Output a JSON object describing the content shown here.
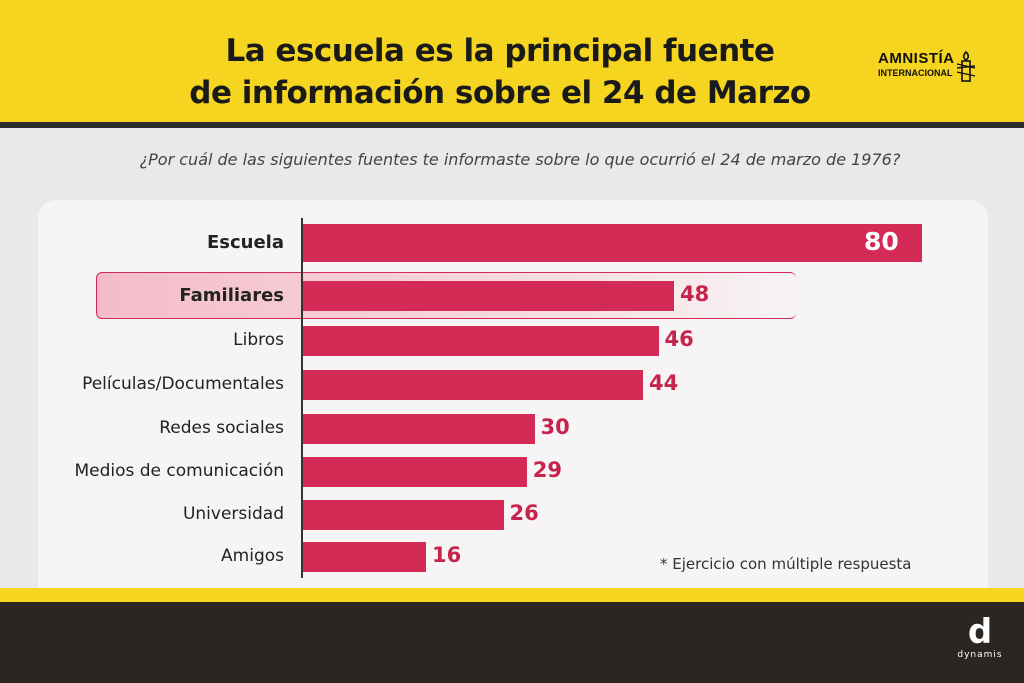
{
  "header": {
    "title_line1": "La escuela es la principal fuente",
    "title_line2": "de información sobre el 24 de Marzo",
    "logo_line1": "AMNISTÍA",
    "logo_line2": "INTERNACIONAL"
  },
  "chart_data": {
    "type": "bar",
    "orientation": "horizontal",
    "title": "¿Por cuál de las siguientes fuentes te informaste sobre lo que ocurrió el 24 de marzo de 1976?",
    "categories": [
      "Escuela",
      "Familiares",
      "Libros",
      "Películas/Documentales",
      "Redes sociales",
      "Medios de comunicación",
      "Universidad",
      "Amigos"
    ],
    "values": [
      80,
      48,
      46,
      44,
      30,
      29,
      26,
      16
    ],
    "highlighted": "Familiares",
    "xlim": [
      0,
      80
    ],
    "bar_color": "#d42a56",
    "note": "* Ejercicio con múltiple respuesta"
  },
  "footer": {
    "brand": "dynamis",
    "brand_mark": "d"
  }
}
